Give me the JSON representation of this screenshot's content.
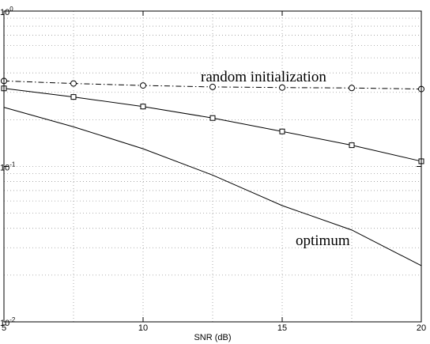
{
  "chart_data": {
    "type": "line",
    "title": "",
    "xlabel": "SNR (dB)",
    "ylabel": "",
    "xlim": [
      5,
      20
    ],
    "ylim": [
      0.01,
      1
    ],
    "yscale": "log",
    "grid": true,
    "x_ticks": [
      5,
      10,
      15,
      20
    ],
    "y_ticks": [
      {
        "value": 0.01,
        "base": "10",
        "exp": "-2"
      },
      {
        "value": 0.1,
        "base": "10",
        "exp": "-1"
      },
      {
        "value": 1,
        "base": "10",
        "exp": "0"
      }
    ],
    "series": [
      {
        "label": "random initialization",
        "line_style": "dashdot",
        "marker": "circle",
        "color": "#000000",
        "x": [
          5,
          7.5,
          10,
          12.5,
          15,
          17.5,
          20
        ],
        "y": [
          0.355,
          0.342,
          0.332,
          0.325,
          0.322,
          0.32,
          0.315
        ]
      },
      {
        "line_style": "solid",
        "marker": "square",
        "color": "#000000",
        "x": [
          5,
          7.5,
          10,
          12.5,
          15,
          17.5,
          20
        ],
        "y": [
          0.318,
          0.28,
          0.243,
          0.205,
          0.168,
          0.137,
          0.108
        ]
      },
      {
        "label": "optimum",
        "line_style": "solid",
        "marker": "none",
        "color": "#000000",
        "x": [
          5,
          7.5,
          10,
          12.5,
          15,
          17.5,
          20
        ],
        "y": [
          0.24,
          0.18,
          0.13,
          0.088,
          0.056,
          0.039,
          0.023
        ]
      }
    ]
  }
}
